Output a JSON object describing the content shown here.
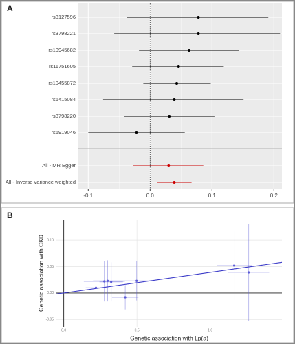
{
  "chart_data": [
    {
      "type": "forest",
      "label": "A",
      "categories": [
        "rs3127596",
        "rs3798221",
        "rs10945682",
        "rs11751605",
        "rs10455872",
        "rs6415084",
        "rs3798220",
        "rs6919046",
        "All - MR Egger",
        "All - Inverse variance weighted"
      ],
      "values": [
        0.078,
        0.078,
        0.063,
        0.046,
        0.043,
        0.039,
        0.031,
        -0.022,
        0.03,
        0.039
      ],
      "ci_low": [
        -0.037,
        -0.058,
        -0.018,
        -0.029,
        -0.011,
        -0.076,
        -0.042,
        -0.1,
        -0.027,
        0.011
      ],
      "ci_high": [
        0.191,
        0.21,
        0.143,
        0.119,
        0.098,
        0.151,
        0.104,
        0.056,
        0.086,
        0.067
      ],
      "colors": [
        "#000000",
        "#000000",
        "#000000",
        "#000000",
        "#000000",
        "#000000",
        "#000000",
        "#000000",
        "#cc0000",
        "#cc0000"
      ],
      "xlim": [
        -0.117,
        0.213
      ],
      "xticks": [
        -0.1,
        {
          "value": 0,
          "label": "0.0"
        },
        0.1,
        0.2
      ],
      "grid": true
    },
    {
      "type": "scatter",
      "label": "B",
      "xlabel": "Genetic association with Lp(a)",
      "ylabel": "Genetic association with CKD",
      "x": [
        0.22,
        0.277,
        0.3,
        0.324,
        0.498,
        0.42,
        1.164,
        1.263
      ],
      "values": [
        0.01,
        0.022,
        0.023,
        0.021,
        0.023,
        -0.008,
        0.052,
        0.039
      ],
      "xerr": [
        0.07,
        0.14,
        0.1,
        0.08,
        0.1,
        0.09,
        0.12,
        0.14
      ],
      "yerr": [
        0.03,
        0.038,
        0.039,
        0.037,
        0.037,
        0.023,
        0.065,
        0.092
      ],
      "color": "#5b5bd6",
      "line_color": "#3a3ac8",
      "xlim": [
        -0.05,
        1.49
      ],
      "ylim": [
        -0.064,
        0.138
      ],
      "xticks": [
        {
          "value": 0,
          "label": "0.0"
        },
        0.5,
        {
          "value": 1,
          "label": "1.0"
        }
      ],
      "yticks": [
        {
          "value": 0.1,
          "label": "0.10"
        },
        0.05,
        {
          "value": 0,
          "label": "0.00"
        },
        -0.05
      ],
      "grid": true
    }
  ]
}
